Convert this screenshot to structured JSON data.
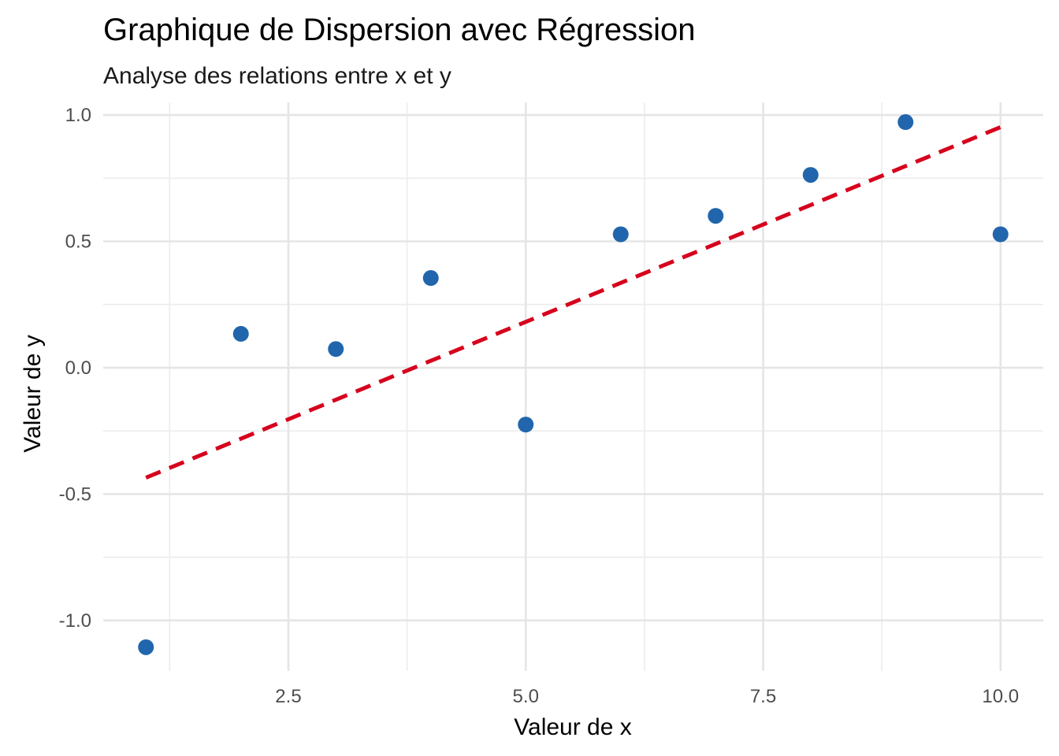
{
  "chart_data": {
    "type": "scatter",
    "title": "Graphique de Dispersion avec Régression",
    "subtitle": "Analyse des relations entre x et y",
    "xlabel": "Valeur de x",
    "ylabel": "Valeur de y",
    "xlim": [
      0.55,
      10.45
    ],
    "ylim": [
      -1.2,
      1.05
    ],
    "x_ticks": [
      2.5,
      5.0,
      7.5,
      10.0
    ],
    "x_tick_labels": [
      "2.5",
      "5.0",
      "7.5",
      "10.0"
    ],
    "y_ticks": [
      -1.0,
      -0.5,
      0.0,
      0.5,
      1.0
    ],
    "y_tick_labels": [
      "-1.0",
      "-0.5",
      "0.0",
      "0.5",
      "1.0"
    ],
    "x_minor": [
      1.25,
      3.75,
      6.25,
      8.75
    ],
    "y_minor": [
      -0.75,
      -0.25,
      0.25,
      0.75
    ],
    "grid": true,
    "series": [
      {
        "type": "scatter",
        "color": "#2166ac",
        "x": [
          1,
          2,
          3,
          4,
          5,
          6,
          7,
          8,
          9,
          10
        ],
        "y": [
          -1.106,
          0.134,
          0.074,
          0.355,
          -0.225,
          0.528,
          0.601,
          0.763,
          0.972,
          0.528
        ]
      },
      {
        "type": "regression-line",
        "style": "dashed",
        "color": "#d6001c",
        "x": [
          1,
          10
        ],
        "y": [
          -0.435,
          0.952
        ]
      }
    ]
  }
}
